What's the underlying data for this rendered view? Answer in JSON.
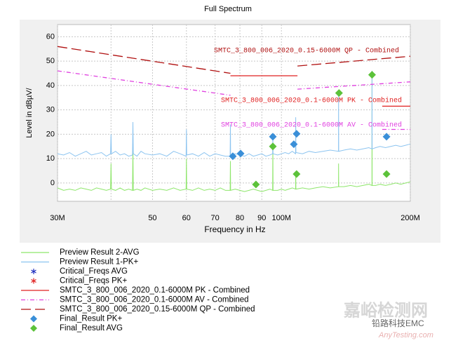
{
  "chart_data": {
    "type": "line",
    "title": "Full Spectrum",
    "x_label": "Frequency in Hz",
    "y_label": "Level in dBµV/",
    "xscale": "log",
    "xlim": [
      30,
      200
    ],
    "xticks": [
      {
        "value": 30,
        "label": "30M"
      },
      50,
      60,
      70,
      80,
      90,
      {
        "value": 100,
        "label": "100M"
      },
      {
        "value": 200,
        "label": "200M"
      }
    ],
    "xminor": [
      40
    ],
    "ylim": [
      -7.5,
      65
    ],
    "yticks": [
      0,
      10,
      20,
      30,
      40,
      50,
      60
    ],
    "grid": true,
    "series": [
      {
        "name": "Preview Result 2-AVG",
        "color": "#8ee66b",
        "style": "solid",
        "x": [
          30,
          31,
          32,
          33,
          34,
          35,
          36,
          37,
          38,
          39,
          39.9,
          40,
          40.1,
          41,
          42,
          43,
          44,
          44.9,
          45,
          45.1,
          46,
          47,
          48,
          50,
          52,
          54,
          56,
          58,
          59.9,
          60,
          60.1,
          62,
          64,
          66,
          68,
          70,
          72,
          74,
          75.9,
          76,
          76.1,
          78,
          80,
          82,
          84,
          86,
          88,
          90,
          92,
          94,
          95.4,
          95.5,
          95.6,
          98,
          100,
          102,
          104,
          106,
          107.9,
          108,
          108.1,
          112,
          116,
          120,
          125,
          130,
          135.9,
          136,
          136.1,
          140,
          145,
          150,
          155,
          160,
          162.7,
          162.8,
          162.9,
          166,
          170,
          175,
          180,
          185,
          190,
          195,
          200
        ],
        "values": [
          -2,
          -3,
          -2.5,
          -3,
          -2,
          -2.5,
          -3,
          -2,
          -2.5,
          -3,
          -2.5,
          8,
          -2.5,
          -3,
          -2,
          -3,
          -2.5,
          -3,
          14,
          -3,
          -2.5,
          -3,
          -2,
          -3,
          -2.5,
          -3,
          -2,
          -3,
          -2.5,
          10,
          -2.5,
          -3,
          -2,
          -3,
          -2.5,
          -3,
          -2,
          -3,
          -3,
          9,
          -3,
          -2.5,
          -3,
          -3.5,
          -3,
          -2.5,
          -3,
          -3.5,
          -3,
          -2.5,
          -3,
          15,
          -3,
          -3,
          -2.5,
          -3,
          -2.5,
          -2,
          -2.5,
          4,
          -2.5,
          -2,
          -2.5,
          -2,
          -1.5,
          -2,
          -1.5,
          8,
          -1.5,
          -1.5,
          -1,
          -1.5,
          -1,
          -0.5,
          -1,
          44,
          -1,
          -1,
          -0.5,
          -1,
          -0.5,
          0,
          -0.5,
          0,
          0.5
        ]
      },
      {
        "name": "Preview Result 1-PK+",
        "color": "#8cc4f0",
        "style": "solid",
        "x": [
          30,
          31,
          32,
          33,
          34,
          35,
          36,
          37,
          38,
          39,
          39.9,
          40,
          40.1,
          41,
          42,
          43,
          44,
          44.9,
          45,
          45.1,
          46,
          47,
          48,
          50,
          52,
          54,
          56,
          58,
          59.9,
          60,
          60.1,
          62,
          64,
          66,
          68,
          70,
          72,
          74,
          75.9,
          76,
          76.1,
          78,
          80,
          82,
          84,
          86,
          88,
          90,
          92,
          94,
          95.4,
          95.5,
          95.6,
          98,
          100,
          102,
          104,
          106,
          107.9,
          108,
          108.1,
          112,
          116,
          120,
          125,
          130,
          135.9,
          136,
          136.1,
          140,
          145,
          150,
          155,
          160,
          162.7,
          162.8,
          162.9,
          166,
          170,
          175,
          180,
          185,
          190,
          195,
          200
        ],
        "values": [
          12,
          11.5,
          12.5,
          11,
          12,
          13,
          11.5,
          12,
          12.5,
          11,
          12,
          20,
          12,
          13,
          11.5,
          12,
          11,
          11.5,
          25,
          12,
          11,
          13,
          12,
          11.5,
          12,
          11,
          13,
          12,
          11,
          22,
          11.5,
          12,
          11,
          12.5,
          11,
          12,
          11.5,
          11,
          11,
          24,
          11,
          12,
          11.5,
          11,
          12,
          11,
          11.5,
          12,
          11,
          11.5,
          12,
          19,
          12,
          11.5,
          12,
          12.5,
          12,
          13,
          12,
          27,
          12.5,
          12,
          13,
          12.5,
          13,
          13.5,
          13,
          38,
          13,
          13.5,
          14,
          13.5,
          14,
          14.5,
          14,
          46,
          14,
          14.5,
          15,
          14.5,
          15,
          15.5,
          15,
          15.5,
          16
        ]
      },
      {
        "name": "Critical_Freqs AVG",
        "color": "#1f2fbf",
        "style": "asterisk",
        "x": [],
        "values": []
      },
      {
        "name": "Critical_Freqs PK+",
        "color": "#e02020",
        "style": "asterisk",
        "x": [],
        "values": []
      },
      {
        "name": "SMTC_3_800_006_2020_0.1-6000M  PK - Combined",
        "color": "#e02020",
        "style": "solid",
        "x": [
          76,
          109,
          140,
          172,
          200
        ],
        "values": [
          44,
          44,
          null,
          31.5,
          31.5
        ]
      },
      {
        "name": "SMTC_3_800_006_2020_0.1-6000M  AV - Combined",
        "color": "#e040e0",
        "style": "dashdot",
        "x": [
          30,
          76,
          92,
          109,
          200,
          186,
          172,
          200
        ],
        "values": [
          46,
          36,
          null,
          38.5,
          41.5,
          null,
          22,
          22
        ]
      },
      {
        "name": "SMTC_3_800_006_2020_0.15-6000M  QP - Combined",
        "color": "#b01010",
        "style": "longdash",
        "x": [
          30,
          76,
          92,
          109,
          200
        ],
        "values": [
          56,
          45,
          null,
          48,
          52
        ]
      },
      {
        "name": "Final_Result PK+",
        "color": "#3a8fd8",
        "style": "diamond",
        "x": [
          77,
          80.3,
          95.5,
          106.9,
          108.5,
          176
        ],
        "values": [
          11,
          12.1,
          19,
          15.9,
          20.2,
          19
        ]
      },
      {
        "name": "Final_Result AVG",
        "color": "#5cc23a",
        "style": "diamond",
        "x": [
          87.2,
          95.5,
          108.5,
          136.3,
          162.8,
          176
        ],
        "values": [
          -0.6,
          15,
          3.7,
          36.9,
          44.4,
          3.7
        ]
      }
    ],
    "annotations": [
      "SMTC_3_800_006_2020_0.15-6000M  QP - Combined",
      "SMTC_3_800_006_2020_0.1-6000M  PK - Combined",
      "SMTC_3_800_006_2020_0.1-6000M  AV - Combined"
    ],
    "watermark": [
      "嘉峪检测网",
      "铅路科技EMC",
      "AnyTesting.com"
    ]
  }
}
